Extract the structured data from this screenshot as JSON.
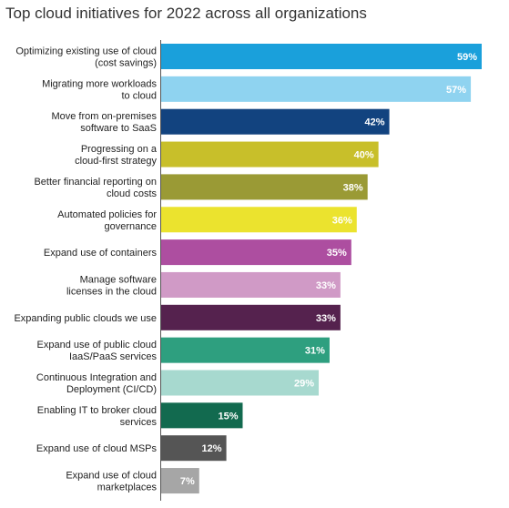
{
  "chart_data": {
    "type": "bar",
    "orientation": "horizontal",
    "title": "Top cloud initiatives for 2022 across all organizations",
    "xlabel": "",
    "ylabel": "",
    "xlim": [
      0,
      59
    ],
    "value_suffix": "%",
    "grid": false,
    "legend": "none",
    "categories": [
      [
        "Optimizing existing use of cloud",
        "(cost savings)"
      ],
      [
        "Migrating more workloads",
        "to cloud"
      ],
      [
        "Move from on-premises",
        "software to SaaS"
      ],
      [
        "Progressing on a",
        "cloud-first strategy"
      ],
      [
        "Better financial reporting on",
        "cloud costs"
      ],
      [
        "Automated policies for",
        "governance"
      ],
      [
        "Expand use of containers"
      ],
      [
        "Manage software",
        "licenses in the cloud"
      ],
      [
        "Expanding public clouds we use"
      ],
      [
        "Expand use of public cloud",
        "IaaS/PaaS services"
      ],
      [
        "Continuous Integration and",
        "Deployment (CI/CD)"
      ],
      [
        "Enabling IT to broker cloud",
        "services"
      ],
      [
        "Expand use of cloud MSPs"
      ],
      [
        "Expand use of cloud",
        "marketplaces"
      ]
    ],
    "values": [
      59,
      57,
      42,
      40,
      38,
      36,
      35,
      33,
      33,
      31,
      29,
      15,
      12,
      7
    ],
    "colors": [
      "#1aa0db",
      "#8fd3f0",
      "#12437f",
      "#c8bf2a",
      "#9a9a35",
      "#ebe32e",
      "#ad4ea0",
      "#d09ac6",
      "#55224e",
      "#2e9f7f",
      "#a7d9cf",
      "#126a4f",
      "#555555",
      "#a6a6a6"
    ]
  }
}
